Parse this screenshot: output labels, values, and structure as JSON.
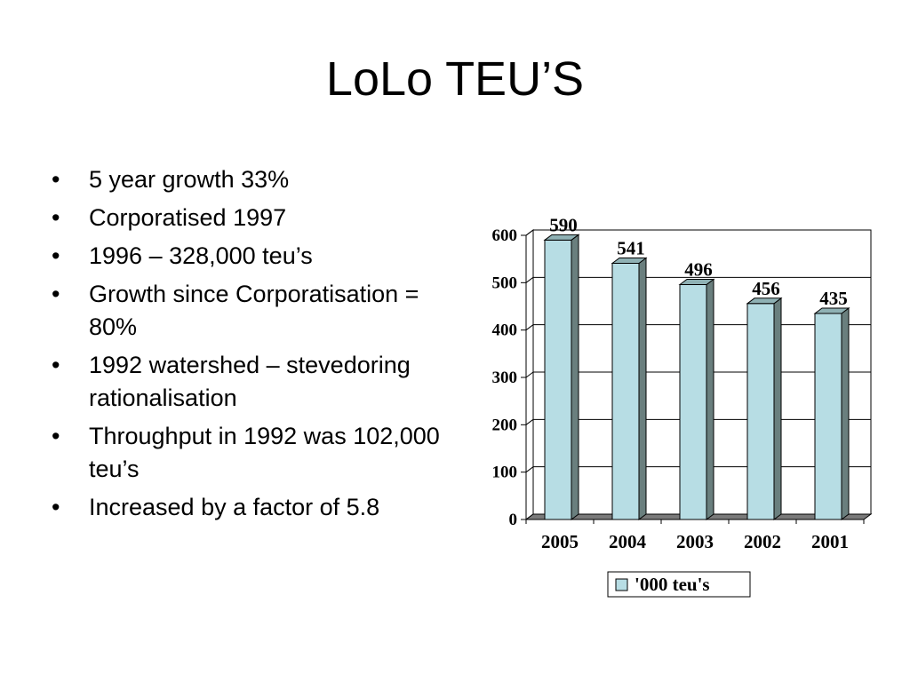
{
  "slide": {
    "title": "LoLo TEU’S",
    "bullets": [
      "5 year growth 33%",
      "Corporatised 1997",
      "1996 – 328,000 teu’s",
      "Growth since Corporatisation = 80%",
      "1992 watershed – stevedoring rationalisation",
      "Throughput in 1992 was 102,000 teu’s",
      "Increased by a factor of 5.8"
    ],
    "bullet_glyph": "•"
  },
  "chart_data": {
    "type": "bar",
    "categories": [
      "2005",
      "2004",
      "2003",
      "2002",
      "2001"
    ],
    "series": [
      {
        "name": "'000 teu's",
        "values": [
          590,
          541,
          496,
          456,
          435
        ]
      }
    ],
    "data_labels": [
      "590",
      "541",
      "496",
      "456",
      "435"
    ],
    "ylim": [
      0,
      600
    ],
    "yticks": [
      "0",
      "100",
      "200",
      "300",
      "400",
      "500",
      "600"
    ],
    "grid": true,
    "legend_placement": "bottom-center",
    "style": "3d-column",
    "colors": {
      "bar_front": "#b7dde4",
      "bar_side": "#6a7f7e",
      "bar_top": "#8fb1b4",
      "floor": "#7a7a7a",
      "gridline": "#000000"
    }
  }
}
